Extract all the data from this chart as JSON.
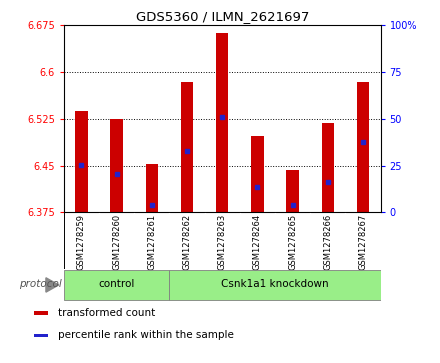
{
  "title": "GDS5360 / ILMN_2621697",
  "samples": [
    "GSM1278259",
    "GSM1278260",
    "GSM1278261",
    "GSM1278262",
    "GSM1278263",
    "GSM1278264",
    "GSM1278265",
    "GSM1278266",
    "GSM1278267"
  ],
  "bar_tops": [
    6.537,
    6.525,
    6.452,
    6.584,
    6.663,
    6.498,
    6.443,
    6.519,
    6.584
  ],
  "bar_bottom": 6.375,
  "blue_dot_y": [
    6.451,
    6.436,
    6.387,
    6.474,
    6.528,
    6.415,
    6.387,
    6.424,
    6.488
  ],
  "ylim": [
    6.375,
    6.675
  ],
  "yticks_left": [
    6.375,
    6.45,
    6.525,
    6.6,
    6.675
  ],
  "yticks_right": [
    0,
    25,
    50,
    75,
    100
  ],
  "bar_color": "#cc0000",
  "dot_color": "#2222cc",
  "protocol_groups": [
    {
      "label": "control",
      "start": 0,
      "end": 2
    },
    {
      "label": "Csnk1a1 knockdown",
      "start": 3,
      "end": 8
    }
  ],
  "protocol_bg": "#99ee88",
  "tick_bg": "#cccccc",
  "legend_items": [
    {
      "color": "#cc0000",
      "label": "transformed count"
    },
    {
      "color": "#2222cc",
      "label": "percentile rank within the sample"
    }
  ],
  "bar_width": 0.35,
  "protocol_label": "protocol",
  "protocol_label_color": "#555555"
}
